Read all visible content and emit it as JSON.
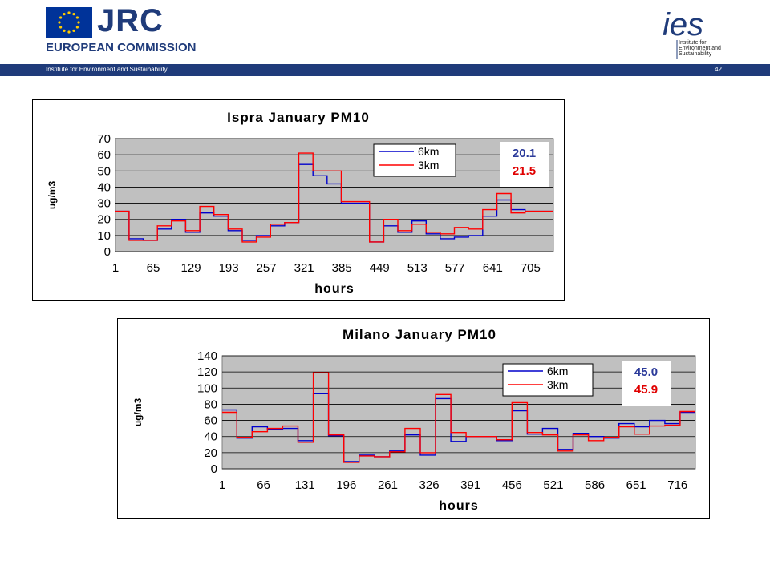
{
  "header": {
    "logo_text": "JRC",
    "organization": "EUROPEAN COMMISSION",
    "institute": "Institute for Environment and Sustainability",
    "slide_number": "42",
    "ies_logo_text": "ies",
    "ies_caption_lines": [
      "Institute for",
      "Environment and",
      "Sustainability"
    ]
  },
  "colors": {
    "brand": "#1f3b7a",
    "series_6km": "#0000cc",
    "series_3km": "#ff0000",
    "plot_bg": "#c0c0c0"
  },
  "annotations": [
    {
      "chart": 0,
      "value_6km": "20.1",
      "value_3km": "21.5"
    },
    {
      "chart": 1,
      "value_6km": "45.0",
      "value_3km": "45.9"
    }
  ],
  "chart_data": [
    {
      "type": "line",
      "title": "Ispra January PM10",
      "xlabel": "hours",
      "ylabel": "ug/m3",
      "ylim": [
        0,
        70
      ],
      "yticks": [
        0,
        10,
        20,
        30,
        40,
        50,
        60,
        70
      ],
      "xlim": [
        1,
        744
      ],
      "xticks": [
        1,
        65,
        129,
        193,
        257,
        321,
        385,
        449,
        513,
        577,
        641,
        705
      ],
      "grid": true,
      "legend": "top-right",
      "series": [
        {
          "name": "6km",
          "color": "#0000cc",
          "x": [
            1,
            24,
            24,
            48,
            48,
            72,
            72,
            96,
            96,
            120,
            120,
            144,
            144,
            168,
            168,
            192,
            192,
            216,
            216,
            240,
            240,
            264,
            264,
            288,
            288,
            312,
            312,
            336,
            336,
            360,
            360,
            384,
            384,
            408,
            408,
            432,
            432,
            456,
            456,
            480,
            480,
            504,
            504,
            528,
            528,
            552,
            552,
            576,
            576,
            600,
            600,
            624,
            624,
            648,
            648,
            672,
            672,
            696,
            696,
            720,
            720,
            744
          ],
          "y": [
            25,
            25,
            8,
            8,
            7,
            7,
            14,
            14,
            20,
            20,
            12,
            12,
            24,
            24,
            22,
            22,
            13,
            13,
            7,
            7,
            10,
            10,
            16,
            16,
            18,
            18,
            54,
            54,
            47,
            47,
            42,
            42,
            30,
            30,
            30,
            30,
            6,
            6,
            16,
            16,
            12,
            12,
            19,
            19,
            11,
            11,
            8,
            8,
            9,
            9,
            10,
            10,
            22,
            22,
            32,
            32,
            26,
            26,
            25,
            25,
            25,
            25
          ]
        },
        {
          "name": "3km",
          "color": "#ff0000",
          "x": [
            1,
            24,
            24,
            48,
            48,
            72,
            72,
            96,
            96,
            120,
            120,
            144,
            144,
            168,
            168,
            192,
            192,
            216,
            216,
            240,
            240,
            264,
            264,
            288,
            288,
            312,
            312,
            336,
            336,
            360,
            360,
            384,
            384,
            408,
            408,
            432,
            432,
            456,
            456,
            480,
            480,
            504,
            504,
            528,
            528,
            552,
            552,
            576,
            576,
            600,
            600,
            624,
            624,
            648,
            648,
            672,
            672,
            696,
            696,
            720,
            720,
            744
          ],
          "y": [
            25,
            25,
            7,
            7,
            7,
            7,
            16,
            16,
            19,
            19,
            13,
            13,
            28,
            28,
            23,
            23,
            14,
            14,
            6,
            6,
            9,
            9,
            17,
            17,
            18,
            18,
            61,
            61,
            50,
            50,
            50,
            50,
            31,
            31,
            31,
            31,
            6,
            6,
            20,
            20,
            13,
            13,
            17,
            17,
            12,
            12,
            11,
            11,
            15,
            15,
            14,
            14,
            26,
            26,
            36,
            36,
            24,
            24,
            25,
            25,
            25,
            25
          ]
        }
      ]
    },
    {
      "type": "line",
      "title": "Milano January PM10",
      "xlabel": "hours",
      "ylabel": "ug/m3",
      "ylim": [
        0,
        140
      ],
      "yticks": [
        0,
        20,
        40,
        60,
        80,
        100,
        120,
        140
      ],
      "xlim": [
        1,
        744
      ],
      "xticks": [
        1,
        66,
        131,
        196,
        261,
        326,
        391,
        456,
        521,
        586,
        651,
        716
      ],
      "grid": true,
      "legend": "top-right",
      "series": [
        {
          "name": "6km",
          "color": "#0000cc",
          "x": [
            1,
            24,
            24,
            48,
            48,
            72,
            72,
            96,
            96,
            120,
            120,
            144,
            144,
            168,
            168,
            192,
            192,
            216,
            216,
            240,
            240,
            264,
            264,
            288,
            288,
            312,
            312,
            336,
            336,
            360,
            360,
            384,
            384,
            408,
            408,
            432,
            432,
            456,
            456,
            480,
            480,
            504,
            504,
            528,
            528,
            552,
            552,
            576,
            576,
            600,
            600,
            624,
            624,
            648,
            648,
            672,
            672,
            696,
            696,
            720,
            720,
            744
          ],
          "y": [
            73,
            73,
            38,
            38,
            52,
            52,
            49,
            49,
            50,
            50,
            35,
            35,
            93,
            93,
            41,
            41,
            9,
            9,
            17,
            17,
            15,
            15,
            22,
            22,
            42,
            42,
            17,
            17,
            87,
            87,
            34,
            34,
            40,
            40,
            40,
            40,
            35,
            35,
            72,
            72,
            43,
            43,
            50,
            50,
            24,
            24,
            44,
            44,
            40,
            40,
            38,
            38,
            56,
            56,
            52,
            52,
            60,
            60,
            56,
            56,
            70,
            70
          ]
        },
        {
          "name": "3km",
          "color": "#ff0000",
          "x": [
            1,
            24,
            24,
            48,
            48,
            72,
            72,
            96,
            96,
            120,
            120,
            144,
            144,
            168,
            168,
            192,
            192,
            216,
            216,
            240,
            240,
            264,
            264,
            288,
            288,
            312,
            312,
            336,
            336,
            360,
            360,
            384,
            384,
            408,
            408,
            432,
            432,
            456,
            456,
            480,
            480,
            504,
            504,
            528,
            528,
            552,
            552,
            576,
            576,
            600,
            600,
            624,
            624,
            648,
            648,
            672,
            672,
            696,
            696,
            720,
            720,
            744
          ],
          "y": [
            70,
            70,
            39,
            39,
            46,
            46,
            50,
            50,
            53,
            53,
            33,
            33,
            119,
            119,
            42,
            42,
            8,
            8,
            16,
            16,
            15,
            15,
            21,
            21,
            50,
            50,
            20,
            20,
            92,
            92,
            45,
            45,
            40,
            40,
            40,
            40,
            36,
            36,
            82,
            82,
            45,
            45,
            42,
            42,
            22,
            22,
            42,
            42,
            35,
            35,
            39,
            39,
            52,
            52,
            43,
            43,
            53,
            53,
            54,
            54,
            71,
            71
          ]
        }
      ]
    }
  ]
}
